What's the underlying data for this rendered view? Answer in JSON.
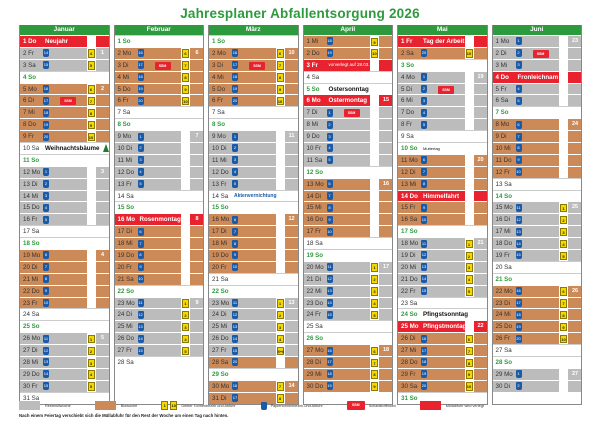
{
  "title": "Jahresplaner Abfallentsorgung 2026",
  "colors": {
    "green": "#2e9a3e",
    "grey": "#bcbcbc",
    "brown": "#cc8a58",
    "red": "#e8222e",
    "blue": "#1a5aa6",
    "yellow": "#f5d800"
  },
  "months": [
    {
      "name": "Januar",
      "days": [
        {
          "d": "1 Do",
          "type": "holiday",
          "holiday": "Neujahr"
        },
        {
          "d": "2 Fr",
          "type": "grey",
          "blue": "14",
          "yellow": "4",
          "wk": "1"
        },
        {
          "d": "3 Sa",
          "type": "grey",
          "blue": "15",
          "yellow": "5"
        },
        {
          "d": "4 So",
          "type": "sunday"
        },
        {
          "d": "5 Mo",
          "type": "brown",
          "blue": "16",
          "yellow": "6",
          "wk": "2"
        },
        {
          "d": "6 Di",
          "type": "brown",
          "blue": "17",
          "yellow": "7",
          "ssm": "SSM"
        },
        {
          "d": "7 Mi",
          "type": "brown",
          "blue": "18",
          "yellow": "8"
        },
        {
          "d": "8 Do",
          "type": "brown",
          "blue": "19",
          "yellow": "9"
        },
        {
          "d": "9 Fr",
          "type": "brown",
          "blue": "20",
          "yellow": "10"
        },
        {
          "d": "10 Sa",
          "type": "white",
          "special": "Weihnachtsbäume",
          "tree": true
        },
        {
          "d": "11 So",
          "type": "sunday"
        },
        {
          "d": "12 Mo",
          "type": "grey",
          "blue": "1",
          "wk": "3"
        },
        {
          "d": "13 Di",
          "type": "grey",
          "blue": "2"
        },
        {
          "d": "14 Mi",
          "type": "grey",
          "blue": "3"
        },
        {
          "d": "15 Do",
          "type": "grey",
          "blue": "4"
        },
        {
          "d": "16 Fr",
          "type": "grey",
          "blue": "5"
        },
        {
          "d": "17 Sa",
          "type": "white"
        },
        {
          "d": "18 So",
          "type": "sunday"
        },
        {
          "d": "19 Mo",
          "type": "brown",
          "blue": "6",
          "wk": "4"
        },
        {
          "d": "20 Di",
          "type": "brown",
          "blue": "7"
        },
        {
          "d": "21 Mi",
          "type": "brown",
          "blue": "8"
        },
        {
          "d": "22 Do",
          "type": "brown",
          "blue": "9"
        },
        {
          "d": "23 Fr",
          "type": "brown",
          "blue": "10"
        },
        {
          "d": "24 Sa",
          "type": "white"
        },
        {
          "d": "25 So",
          "type": "sunday"
        },
        {
          "d": "26 Mo",
          "type": "grey",
          "blue": "11",
          "yellow": "1",
          "wk": "5"
        },
        {
          "d": "27 Di",
          "type": "grey",
          "blue": "12",
          "yellow": "2"
        },
        {
          "d": "28 Mi",
          "type": "grey",
          "blue": "13",
          "yellow": "3"
        },
        {
          "d": "29 Do",
          "type": "grey",
          "blue": "14",
          "yellow": "4"
        },
        {
          "d": "30 Fr",
          "type": "grey",
          "blue": "15",
          "yellow": "5"
        },
        {
          "d": "31 Sa",
          "type": "white"
        }
      ]
    },
    {
      "name": "Februar",
      "days": [
        {
          "d": "1 So",
          "type": "sunday"
        },
        {
          "d": "2 Mo",
          "type": "brown",
          "blue": "16",
          "yellow": "6",
          "wk": "6"
        },
        {
          "d": "3 Di",
          "type": "brown",
          "blue": "17",
          "yellow": "7",
          "ssm": "SSM"
        },
        {
          "d": "4 Mi",
          "type": "brown",
          "blue": "18",
          "yellow": "8"
        },
        {
          "d": "5 Do",
          "type": "brown",
          "blue": "19",
          "yellow": "9"
        },
        {
          "d": "6 Fr",
          "type": "brown",
          "blue": "20",
          "yellow": "10"
        },
        {
          "d": "7 Sa",
          "type": "white"
        },
        {
          "d": "8 So",
          "type": "sunday"
        },
        {
          "d": "9 Mo",
          "type": "grey",
          "blue": "1",
          "wk": "7"
        },
        {
          "d": "10 Di",
          "type": "grey",
          "blue": "2"
        },
        {
          "d": "11 Mi",
          "type": "grey",
          "blue": "3"
        },
        {
          "d": "12 Do",
          "type": "grey",
          "blue": "4"
        },
        {
          "d": "13 Fr",
          "type": "grey",
          "blue": "5"
        },
        {
          "d": "14 Sa",
          "type": "white"
        },
        {
          "d": "15 So",
          "type": "sunday"
        },
        {
          "d": "16 Mo",
          "type": "holiday",
          "holiday": "Rosenmontag",
          "wk": "8"
        },
        {
          "d": "17 Di",
          "type": "brown",
          "blue": "6"
        },
        {
          "d": "18 Mi",
          "type": "brown",
          "blue": "7"
        },
        {
          "d": "19 Do",
          "type": "brown",
          "blue": "8"
        },
        {
          "d": "20 Fr",
          "type": "brown",
          "blue": "9"
        },
        {
          "d": "21 Sa",
          "type": "brown",
          "blue": "10"
        },
        {
          "d": "22 So",
          "type": "sunday"
        },
        {
          "d": "23 Mo",
          "type": "grey",
          "blue": "11",
          "yellow": "1",
          "wk": "9"
        },
        {
          "d": "24 Di",
          "type": "grey",
          "blue": "12",
          "yellow": "2"
        },
        {
          "d": "25 Mi",
          "type": "grey",
          "blue": "13",
          "yellow": "3"
        },
        {
          "d": "26 Do",
          "type": "grey",
          "blue": "14",
          "yellow": "4"
        },
        {
          "d": "27 Fr",
          "type": "grey",
          "blue": "15",
          "yellow": "5"
        },
        {
          "d": "28 Sa",
          "type": "white"
        }
      ]
    },
    {
      "name": "März",
      "days": [
        {
          "d": "1 So",
          "type": "sunday"
        },
        {
          "d": "2 Mo",
          "type": "brown",
          "blue": "16",
          "yellow": "6",
          "wk": "10"
        },
        {
          "d": "3 Di",
          "type": "brown",
          "blue": "17",
          "yellow": "7",
          "ssm": "SSM"
        },
        {
          "d": "4 Mi",
          "type": "brown",
          "blue": "18",
          "yellow": "8"
        },
        {
          "d": "5 Do",
          "type": "brown",
          "blue": "19",
          "yellow": "9"
        },
        {
          "d": "6 Fr",
          "type": "brown",
          "blue": "20",
          "yellow": "10"
        },
        {
          "d": "7 Sa",
          "type": "white"
        },
        {
          "d": "8 So",
          "type": "sunday"
        },
        {
          "d": "9 Mo",
          "type": "grey",
          "blue": "1",
          "wk": "11"
        },
        {
          "d": "10 Di",
          "type": "grey",
          "blue": "2"
        },
        {
          "d": "11 Mi",
          "type": "grey",
          "blue": "3"
        },
        {
          "d": "12 Do",
          "type": "grey",
          "blue": "4"
        },
        {
          "d": "13 Fr",
          "type": "grey",
          "blue": "5"
        },
        {
          "d": "14 Sa",
          "type": "white",
          "special": "Aktenvernichtung",
          "specialClass": "blue"
        },
        {
          "d": "15 So",
          "type": "sunday"
        },
        {
          "d": "16 Mo",
          "type": "brown",
          "blue": "6",
          "wk": "12"
        },
        {
          "d": "17 Di",
          "type": "brown",
          "blue": "7"
        },
        {
          "d": "18 Mi",
          "type": "brown",
          "blue": "8"
        },
        {
          "d": "19 Do",
          "type": "brown",
          "blue": "9"
        },
        {
          "d": "20 Fr",
          "type": "brown",
          "blue": "10"
        },
        {
          "d": "21 Sa",
          "type": "white"
        },
        {
          "d": "22 So",
          "type": "sunday"
        },
        {
          "d": "23 Mo",
          "type": "grey",
          "blue": "11",
          "yellow": "1",
          "wk": "13"
        },
        {
          "d": "24 Di",
          "type": "grey",
          "blue": "12",
          "yellow": "2"
        },
        {
          "d": "25 Mi",
          "type": "grey",
          "blue": "13",
          "yellow": "3"
        },
        {
          "d": "26 Do",
          "type": "grey",
          "blue": "14",
          "yellow": "4"
        },
        {
          "d": "27 Fr",
          "type": "grey",
          "blue": "15",
          "yellow": "5+6"
        },
        {
          "d": "28 Sa",
          "type": "brown",
          "blue": "20"
        },
        {
          "d": "29 So",
          "type": "sunday"
        },
        {
          "d": "30 Mo",
          "type": "brown",
          "blue": "16",
          "yellow": "7",
          "wk": "14"
        },
        {
          "d": "31 Di",
          "type": "brown",
          "blue": "17",
          "yellow": "8"
        }
      ]
    },
    {
      "name": "April",
      "days": [
        {
          "d": "1 Mi",
          "type": "brown",
          "blue": "18",
          "yellow": "9"
        },
        {
          "d": "2 Do",
          "type": "brown",
          "blue": "19",
          "yellow": "10"
        },
        {
          "d": "3 Fr",
          "type": "holiday",
          "holiday": "vorverlegt auf 28.03.",
          "holidaySmall": true
        },
        {
          "d": "4 Sa",
          "type": "white"
        },
        {
          "d": "5 So",
          "type": "sunday",
          "special": "Ostersonntag"
        },
        {
          "d": "6 Mo",
          "type": "holiday",
          "holiday": "Ostermontag",
          "wk": "15"
        },
        {
          "d": "7 Di",
          "type": "grey",
          "blue": "1",
          "ssm": "SSM"
        },
        {
          "d": "8 Mi",
          "type": "grey",
          "blue": "2"
        },
        {
          "d": "9 Do",
          "type": "grey",
          "blue": "3"
        },
        {
          "d": "10 Fr",
          "type": "grey",
          "blue": "4"
        },
        {
          "d": "11 Sa",
          "type": "grey",
          "blue": "5"
        },
        {
          "d": "12 So",
          "type": "sunday"
        },
        {
          "d": "13 Mo",
          "type": "brown",
          "blue": "6",
          "wk": "16"
        },
        {
          "d": "14 Di",
          "type": "brown",
          "blue": "7"
        },
        {
          "d": "15 Mi",
          "type": "brown",
          "blue": "8"
        },
        {
          "d": "16 Do",
          "type": "brown",
          "blue": "9"
        },
        {
          "d": "17 Fr",
          "type": "brown",
          "blue": "10"
        },
        {
          "d": "18 Sa",
          "type": "white"
        },
        {
          "d": "19 So",
          "type": "sunday"
        },
        {
          "d": "20 Mo",
          "type": "grey",
          "blue": "11",
          "yellow": "1",
          "wk": "17"
        },
        {
          "d": "21 Di",
          "type": "grey",
          "blue": "12",
          "yellow": "2"
        },
        {
          "d": "22 Mi",
          "type": "grey",
          "blue": "13",
          "yellow": "3"
        },
        {
          "d": "23 Do",
          "type": "grey",
          "blue": "14",
          "yellow": "4"
        },
        {
          "d": "24 Fr",
          "type": "grey",
          "blue": "15",
          "yellow": "5"
        },
        {
          "d": "25 Sa",
          "type": "white"
        },
        {
          "d": "26 So",
          "type": "sunday"
        },
        {
          "d": "27 Mo",
          "type": "brown",
          "blue": "16",
          "yellow": "6",
          "wk": "18"
        },
        {
          "d": "28 Di",
          "type": "brown",
          "blue": "17",
          "yellow": "7"
        },
        {
          "d": "29 Mi",
          "type": "brown",
          "blue": "18",
          "yellow": "8"
        },
        {
          "d": "30 Do",
          "type": "brown",
          "blue": "19",
          "yellow": "9"
        }
      ]
    },
    {
      "name": "Mai",
      "days": [
        {
          "d": "1 Fr",
          "type": "holiday",
          "holiday": "Tag der Arbeit"
        },
        {
          "d": "2 Sa",
          "type": "brown",
          "blue": "20",
          "yellow": "10"
        },
        {
          "d": "3 So",
          "type": "sunday"
        },
        {
          "d": "4 Mo",
          "type": "grey",
          "blue": "1",
          "wk": "19"
        },
        {
          "d": "5 Di",
          "type": "grey",
          "blue": "2",
          "ssm": "SSM"
        },
        {
          "d": "6 Mi",
          "type": "grey",
          "blue": "3"
        },
        {
          "d": "7 Do",
          "type": "grey",
          "blue": "4"
        },
        {
          "d": "8 Fr",
          "type": "grey",
          "blue": "5"
        },
        {
          "d": "9 Sa",
          "type": "white"
        },
        {
          "d": "10 So",
          "type": "sunday",
          "special": "Muttertag",
          "specialClass": "tiny"
        },
        {
          "d": "11 Mo",
          "type": "brown",
          "blue": "6",
          "wk": "20"
        },
        {
          "d": "12 Di",
          "type": "brown",
          "blue": "7"
        },
        {
          "d": "13 Mi",
          "type": "brown",
          "blue": "8"
        },
        {
          "d": "14 Do",
          "type": "holiday",
          "holiday": "Himmelfahrt"
        },
        {
          "d": "15 Fr",
          "type": "brown",
          "blue": "9"
        },
        {
          "d": "16 Sa",
          "type": "brown",
          "blue": "10"
        },
        {
          "d": "17 So",
          "type": "sunday"
        },
        {
          "d": "18 Mo",
          "type": "grey",
          "blue": "11",
          "yellow": "1",
          "wk": "21"
        },
        {
          "d": "19 Di",
          "type": "grey",
          "blue": "12",
          "yellow": "2"
        },
        {
          "d": "20 Mi",
          "type": "grey",
          "blue": "13",
          "yellow": "3"
        },
        {
          "d": "21 Do",
          "type": "grey",
          "blue": "14",
          "yellow": "4"
        },
        {
          "d": "22 Fr",
          "type": "grey",
          "blue": "15",
          "yellow": "5"
        },
        {
          "d": "23 Sa",
          "type": "white"
        },
        {
          "d": "24 So",
          "type": "sunday",
          "special": "Pfingstsonntag"
        },
        {
          "d": "25 Mo",
          "type": "holiday",
          "holiday": "Pfingstmontag",
          "wk": "22"
        },
        {
          "d": "26 Di",
          "type": "brown",
          "blue": "16",
          "yellow": "6"
        },
        {
          "d": "27 Mi",
          "type": "brown",
          "blue": "17",
          "yellow": "7"
        },
        {
          "d": "28 Do",
          "type": "brown",
          "blue": "18",
          "yellow": "8"
        },
        {
          "d": "29 Fr",
          "type": "brown",
          "blue": "19",
          "yellow": "9"
        },
        {
          "d": "30 Sa",
          "type": "brown",
          "blue": "20",
          "yellow": "10"
        },
        {
          "d": "31 So",
          "type": "sunday"
        }
      ]
    },
    {
      "name": "Juni",
      "days": [
        {
          "d": "1 Mo",
          "type": "grey",
          "blue": "1",
          "wk": "23"
        },
        {
          "d": "2 Di",
          "type": "grey",
          "blue": "2",
          "ssm": "SSM"
        },
        {
          "d": "3 Mi",
          "type": "grey",
          "blue": "3"
        },
        {
          "d": "4 Do",
          "type": "holiday",
          "holiday": "Fronleichnam"
        },
        {
          "d": "5 Fr",
          "type": "grey",
          "blue": "4"
        },
        {
          "d": "6 Sa",
          "type": "grey",
          "blue": "5"
        },
        {
          "d": "7 So",
          "type": "sunday"
        },
        {
          "d": "8 Mo",
          "type": "brown",
          "blue": "6",
          "wk": "24"
        },
        {
          "d": "9 Di",
          "type": "brown",
          "blue": "7"
        },
        {
          "d": "10 Mi",
          "type": "brown",
          "blue": "8"
        },
        {
          "d": "11 Do",
          "type": "brown",
          "blue": "9"
        },
        {
          "d": "12 Fr",
          "type": "brown",
          "blue": "10"
        },
        {
          "d": "13 Sa",
          "type": "white"
        },
        {
          "d": "14 So",
          "type": "sunday"
        },
        {
          "d": "15 Mo",
          "type": "grey",
          "blue": "11",
          "yellow": "1",
          "wk": "25"
        },
        {
          "d": "16 Di",
          "type": "grey",
          "blue": "12",
          "yellow": "2"
        },
        {
          "d": "17 Mi",
          "type": "grey",
          "blue": "13",
          "yellow": "3"
        },
        {
          "d": "18 Do",
          "type": "grey",
          "blue": "14",
          "yellow": "4"
        },
        {
          "d": "19 Fr",
          "type": "grey",
          "blue": "15",
          "yellow": "5"
        },
        {
          "d": "20 Sa",
          "type": "white"
        },
        {
          "d": "21 So",
          "type": "sunday"
        },
        {
          "d": "22 Mo",
          "type": "brown",
          "blue": "16",
          "yellow": "6",
          "wk": "26"
        },
        {
          "d": "23 Di",
          "type": "brown",
          "blue": "17",
          "yellow": "7"
        },
        {
          "d": "24 Mi",
          "type": "brown",
          "blue": "18",
          "yellow": "8"
        },
        {
          "d": "25 Do",
          "type": "brown",
          "blue": "19",
          "yellow": "9"
        },
        {
          "d": "26 Fr",
          "type": "brown",
          "blue": "20",
          "yellow": "10"
        },
        {
          "d": "27 Sa",
          "type": "white"
        },
        {
          "d": "28 So",
          "type": "sunday"
        },
        {
          "d": "29 Mo",
          "type": "grey",
          "blue": "1",
          "wk": "27"
        },
        {
          "d": "30 Di",
          "type": "grey",
          "blue": "2"
        }
      ]
    }
  ],
  "legend": {
    "restmuell": "Restmüllwoche",
    "bio": "Biowoche",
    "gelb": "Gelber Tonnenbezirk und Abfuhr",
    "gelb_sample": [
      "1",
      "10"
    ],
    "papier": "Papiertonnenbezirk und Abfuhr",
    "ssm": "Schadstoffmobil",
    "ssm_label": "SSM",
    "verlegt": "Müllabfuhr wird verlegt"
  },
  "note": "Nach einem Feiertag verschiebt sich die Müllabfuhr für den Rest der Woche um einen Tag nach hinten."
}
